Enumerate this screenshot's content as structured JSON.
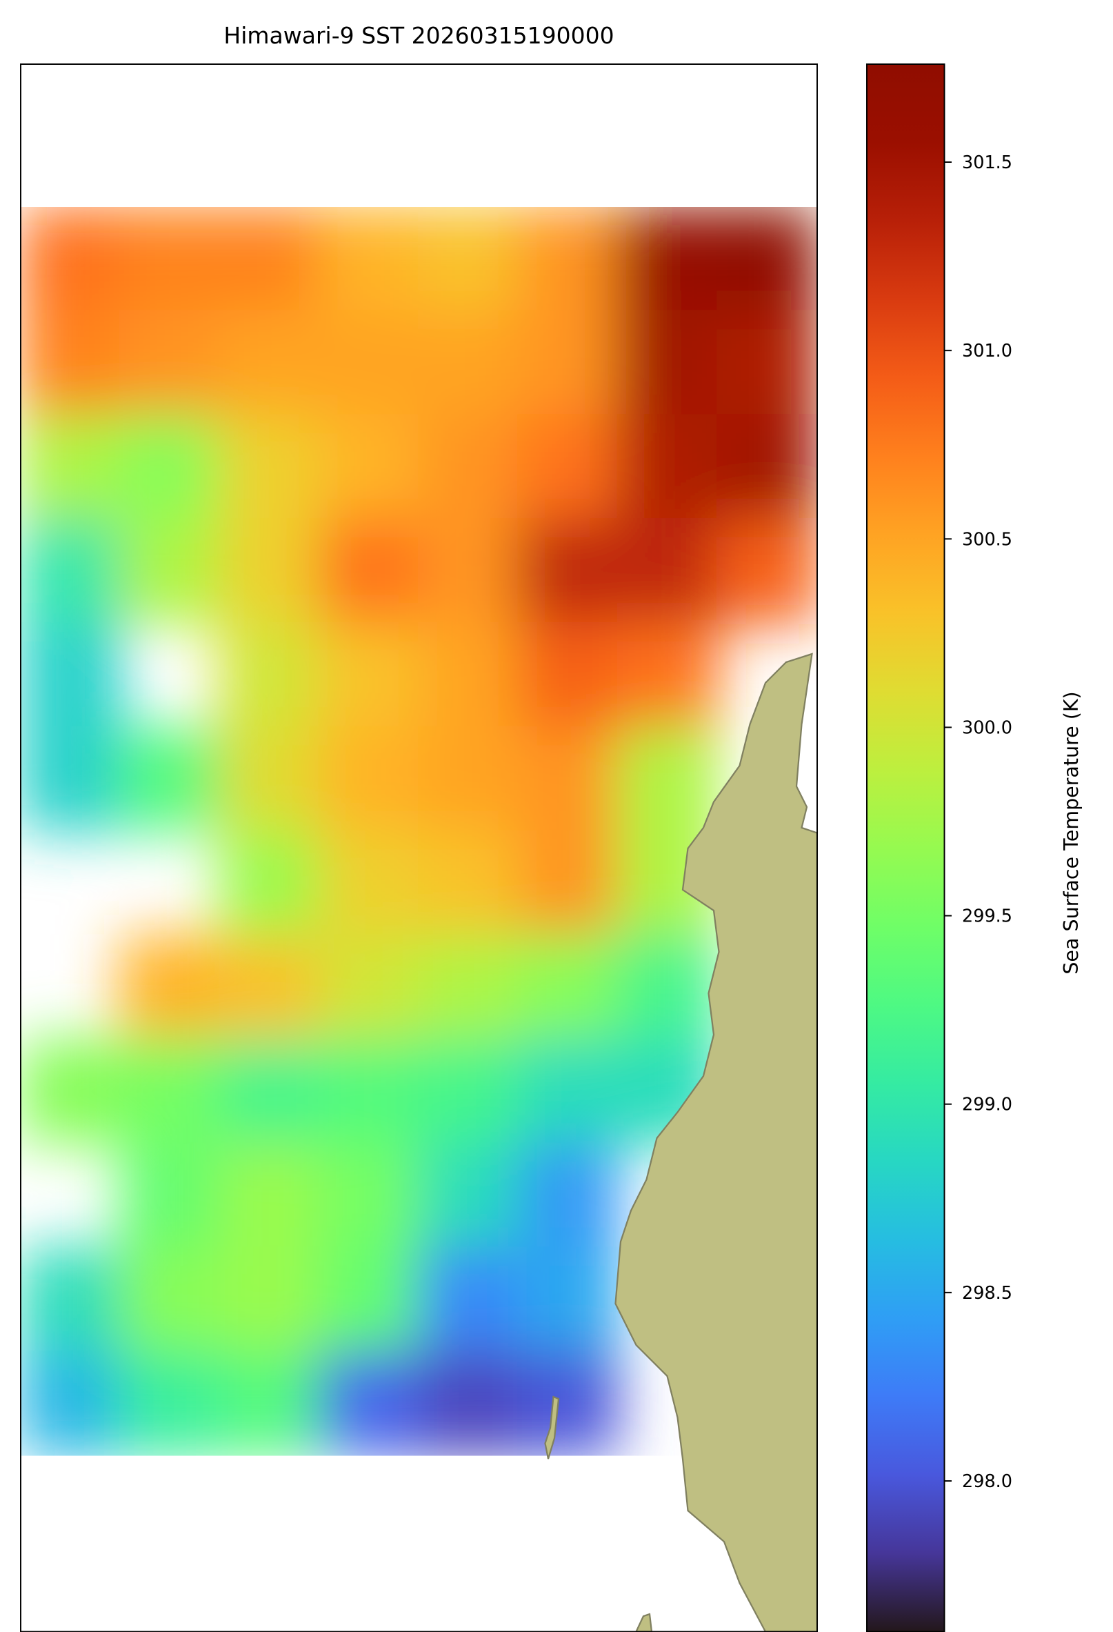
{
  "chart_data": {
    "type": "heatmap",
    "title": "Himawari-9 SST 20260315190000",
    "colorbar_label": "Sea Surface Temperature (K)",
    "colormap": "turbo",
    "clim": [
      297.6,
      301.76
    ],
    "cticks": [
      {
        "value": 298,
        "label": "298.0"
      },
      {
        "value": 298.5,
        "label": "298.5"
      },
      {
        "value": 299,
        "label": "299.0"
      },
      {
        "value": 299.5,
        "label": "299.5"
      },
      {
        "value": 300,
        "label": "300.0"
      },
      {
        "value": 300.5,
        "label": "300.5"
      },
      {
        "value": 301,
        "label": "301.0"
      },
      {
        "value": 301.5,
        "label": "301.5"
      }
    ],
    "land_color": "#bfbf82",
    "field": [
      [
        300.8,
        300.7,
        300.7,
        300.4,
        300.3,
        300.6,
        301.6,
        301.7
      ],
      [
        300.7,
        300.6,
        300.5,
        300.5,
        300.5,
        300.6,
        301.5,
        301.4
      ],
      [
        299.8,
        299.6,
        300.2,
        300.4,
        300.6,
        300.8,
        301.4,
        301.5
      ],
      [
        299.0,
        299.8,
        300.2,
        300.8,
        300.6,
        301.3,
        301.3,
        300.9
      ],
      [
        298.8,
        null,
        300.0,
        300.3,
        300.5,
        300.9,
        300.8,
        null
      ],
      [
        298.8,
        299.3,
        300.1,
        300.4,
        300.5,
        300.6,
        299.8,
        null
      ],
      [
        null,
        null,
        299.7,
        300.2,
        300.3,
        300.6,
        299.8,
        null
      ],
      [
        null,
        300.4,
        300.3,
        300.0,
        299.8,
        299.6,
        299.2,
        null
      ],
      [
        299.6,
        299.5,
        299.2,
        299.3,
        299.2,
        298.9,
        298.9,
        null
      ],
      [
        null,
        299.4,
        299.7,
        299.5,
        298.9,
        298.4,
        null,
        null
      ],
      [
        298.9,
        299.6,
        299.7,
        299.4,
        298.3,
        298.5,
        null,
        null
      ],
      [
        298.6,
        299.1,
        299.3,
        298.1,
        297.9,
        298.0,
        null,
        null
      ]
    ]
  }
}
